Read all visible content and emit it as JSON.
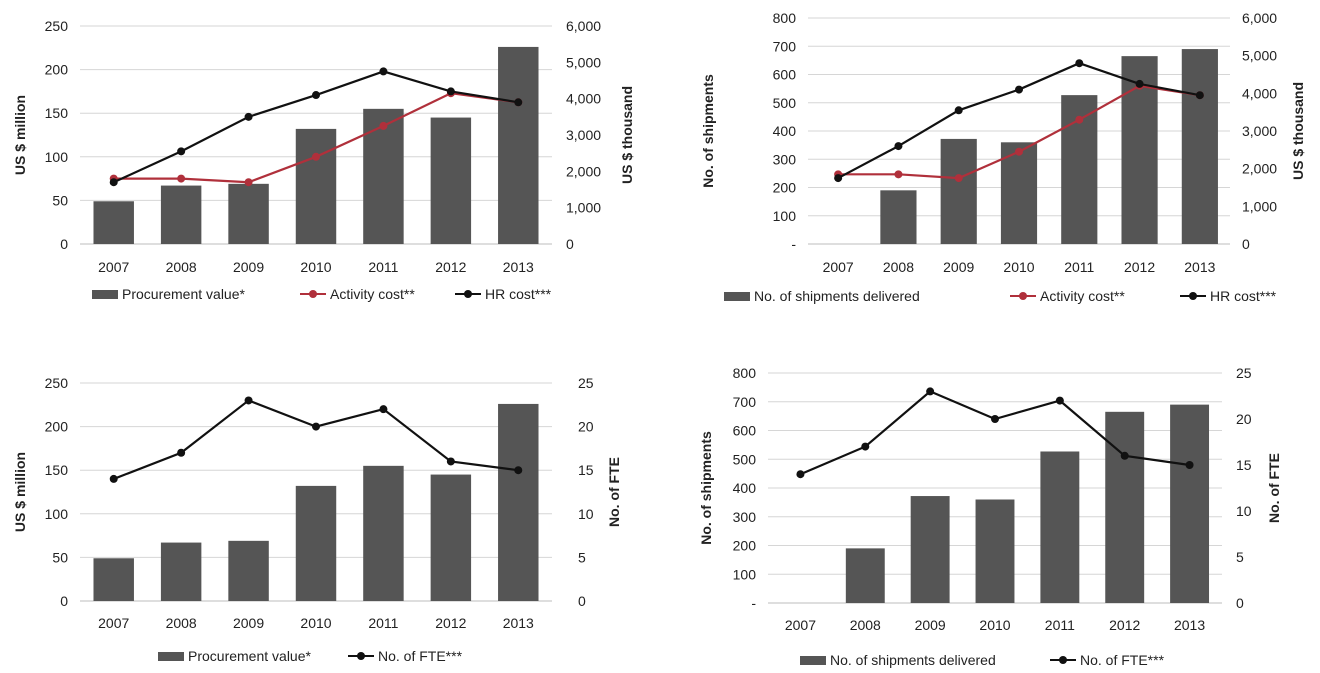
{
  "colors": {
    "bar": "#555555",
    "activity": "#b0303b",
    "hr": "#111111",
    "grid": "#d6d6d6"
  },
  "chart_data": [
    {
      "type": "bar",
      "categories": [
        "2007",
        "2008",
        "2009",
        "2010",
        "2011",
        "2012",
        "2013"
      ],
      "ylabel": "US $ million",
      "ylabel2": "US $ thousand",
      "ylim": [
        0,
        250
      ],
      "ylim2": [
        0,
        6000
      ],
      "yticks": [
        "0",
        "50",
        "100",
        "150",
        "200",
        "250"
      ],
      "yticks2": [
        "0",
        "1,000",
        "2,000",
        "3,000",
        "4,000",
        "5,000",
        "6,000"
      ],
      "grid": true,
      "legend_position": "bottom",
      "series": [
        {
          "name": "Procurement value*",
          "kind": "bar",
          "axis": "left",
          "values": [
            49,
            67,
            69,
            132,
            155,
            145,
            226
          ]
        },
        {
          "name": "Activity cost**",
          "kind": "line",
          "axis": "right",
          "color": "activity",
          "values": [
            1800,
            1800,
            1700,
            2400,
            3250,
            4150,
            3900
          ]
        },
        {
          "name": "HR cost***",
          "kind": "line",
          "axis": "right",
          "color": "hr",
          "values": [
            1700,
            2550,
            3500,
            4100,
            4750,
            4200,
            3900
          ]
        }
      ]
    },
    {
      "type": "bar",
      "categories": [
        "2007",
        "2008",
        "2009",
        "2010",
        "2011",
        "2012",
        "2013"
      ],
      "ylabel": "No. of shipments",
      "ylabel2": "US $ thousand",
      "ylim": [
        0,
        800
      ],
      "ylim2": [
        0,
        6000
      ],
      "yticks": [
        "-",
        "100",
        "200",
        "300",
        "400",
        "500",
        "600",
        "700",
        "800"
      ],
      "yticks2": [
        "0",
        "1,000",
        "2,000",
        "3,000",
        "4,000",
        "5,000",
        "6,000"
      ],
      "grid": true,
      "legend_position": "bottom",
      "series": [
        {
          "name": "No. of shipments delivered",
          "kind": "bar",
          "axis": "left",
          "values": [
            0,
            190,
            372,
            360,
            527,
            665,
            690
          ]
        },
        {
          "name": "Activity cost**",
          "kind": "line",
          "axis": "right",
          "color": "activity",
          "values": [
            1850,
            1850,
            1750,
            2450,
            3300,
            4200,
            3950
          ]
        },
        {
          "name": "HR cost***",
          "kind": "line",
          "axis": "right",
          "color": "hr",
          "values": [
            1750,
            2600,
            3550,
            4100,
            4800,
            4250,
            3950
          ]
        }
      ]
    },
    {
      "type": "bar",
      "categories": [
        "2007",
        "2008",
        "2009",
        "2010",
        "2011",
        "2012",
        "2013"
      ],
      "ylabel": "US $ million",
      "ylabel2": "No. of FTE",
      "ylim": [
        0,
        250
      ],
      "ylim2": [
        0,
        25
      ],
      "yticks": [
        "0",
        "50",
        "100",
        "150",
        "200",
        "250"
      ],
      "yticks2": [
        "0",
        "5",
        "10",
        "15",
        "20",
        "25"
      ],
      "grid": true,
      "legend_position": "bottom",
      "series": [
        {
          "name": "Procurement value*",
          "kind": "bar",
          "axis": "left",
          "values": [
            49,
            67,
            69,
            132,
            155,
            145,
            226
          ]
        },
        {
          "name": "No. of FTE***",
          "kind": "line",
          "axis": "right",
          "color": "hr",
          "values": [
            14,
            17,
            23,
            20,
            22,
            16,
            15
          ]
        }
      ]
    },
    {
      "type": "bar",
      "categories": [
        "2007",
        "2008",
        "2009",
        "2010",
        "2011",
        "2012",
        "2013"
      ],
      "ylabel": "No. of shipments",
      "ylabel2": "No. of FTE",
      "ylim": [
        0,
        800
      ],
      "ylim2": [
        0,
        25
      ],
      "yticks": [
        "-",
        "100",
        "200",
        "300",
        "400",
        "500",
        "600",
        "700",
        "800"
      ],
      "yticks2": [
        "0",
        "5",
        "10",
        "15",
        "20",
        "25"
      ],
      "grid": true,
      "legend_position": "bottom",
      "series": [
        {
          "name": "No. of shipments delivered",
          "kind": "bar",
          "axis": "left",
          "values": [
            0,
            190,
            372,
            360,
            527,
            665,
            690
          ]
        },
        {
          "name": "No. of FTE***",
          "kind": "line",
          "axis": "right",
          "color": "hr",
          "values": [
            14,
            17,
            23,
            20,
            22,
            16,
            15
          ]
        }
      ]
    }
  ]
}
